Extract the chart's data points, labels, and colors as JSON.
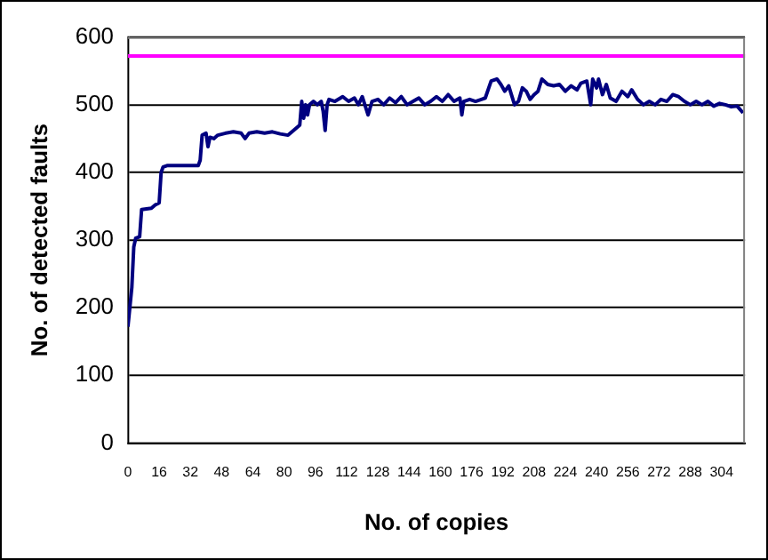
{
  "chart_data": {
    "type": "line",
    "xlabel": "No. of copies",
    "ylabel": "No. of detected faults",
    "xlim": [
      0,
      316
    ],
    "xticks": [
      0,
      16,
      32,
      48,
      64,
      80,
      96,
      112,
      128,
      144,
      160,
      176,
      192,
      208,
      224,
      240,
      256,
      272,
      288,
      304
    ],
    "ylim": [
      0,
      600
    ],
    "yticks": [
      0,
      100,
      200,
      300,
      400,
      500,
      600
    ],
    "grid": "y",
    "legend": false,
    "marker": "none",
    "line_style": "solid",
    "ref_lines": [
      {
        "axis": "y",
        "value": 572,
        "color": "#ff00ff"
      }
    ],
    "series": [
      {
        "color": "#000080",
        "x": [
          0,
          2,
          3,
          4,
          6,
          7,
          12,
          14,
          16,
          17,
          18,
          20,
          36,
          37,
          38,
          40,
          41,
          42,
          44,
          46,
          50,
          54,
          58,
          60,
          62,
          66,
          70,
          74,
          78,
          82,
          84,
          86,
          88,
          89,
          90,
          91,
          92,
          93,
          95,
          97,
          99,
          100,
          101,
          102,
          103,
          106,
          110,
          113,
          116,
          118,
          120,
          123,
          125,
          128,
          131,
          134,
          137,
          140,
          143,
          146,
          149,
          152,
          155,
          158,
          161,
          164,
          167,
          170,
          171,
          172,
          175,
          178,
          181,
          183,
          186,
          189,
          191,
          193,
          195,
          198,
          200,
          202,
          204,
          206,
          208,
          210,
          212,
          215,
          218,
          221,
          224,
          227,
          230,
          232,
          235,
          237,
          238,
          240,
          241,
          243,
          245,
          247,
          250,
          253,
          256,
          258,
          261,
          264,
          267,
          270,
          273,
          276,
          279,
          282,
          285,
          288,
          291,
          294,
          297,
          300,
          303,
          306,
          309,
          312,
          315
        ],
        "values": [
          172,
          230,
          290,
          303,
          305,
          345,
          347,
          352,
          355,
          400,
          408,
          410,
          410,
          418,
          455,
          458,
          438,
          452,
          450,
          455,
          458,
          460,
          458,
          450,
          458,
          460,
          458,
          460,
          457,
          455,
          460,
          465,
          470,
          505,
          480,
          500,
          485,
          500,
          505,
          500,
          505,
          490,
          462,
          500,
          508,
          505,
          512,
          505,
          510,
          500,
          512,
          485,
          505,
          508,
          500,
          510,
          503,
          512,
          500,
          505,
          510,
          500,
          505,
          512,
          505,
          515,
          505,
          510,
          485,
          505,
          508,
          505,
          508,
          510,
          535,
          538,
          530,
          520,
          528,
          500,
          505,
          525,
          520,
          508,
          515,
          520,
          538,
          530,
          528,
          530,
          520,
          528,
          522,
          532,
          535,
          500,
          538,
          525,
          538,
          515,
          530,
          510,
          505,
          520,
          512,
          522,
          508,
          500,
          505,
          500,
          508,
          505,
          515,
          512,
          505,
          500,
          505,
          500,
          505,
          498,
          502,
          500,
          497,
          498,
          488
        ]
      }
    ]
  }
}
